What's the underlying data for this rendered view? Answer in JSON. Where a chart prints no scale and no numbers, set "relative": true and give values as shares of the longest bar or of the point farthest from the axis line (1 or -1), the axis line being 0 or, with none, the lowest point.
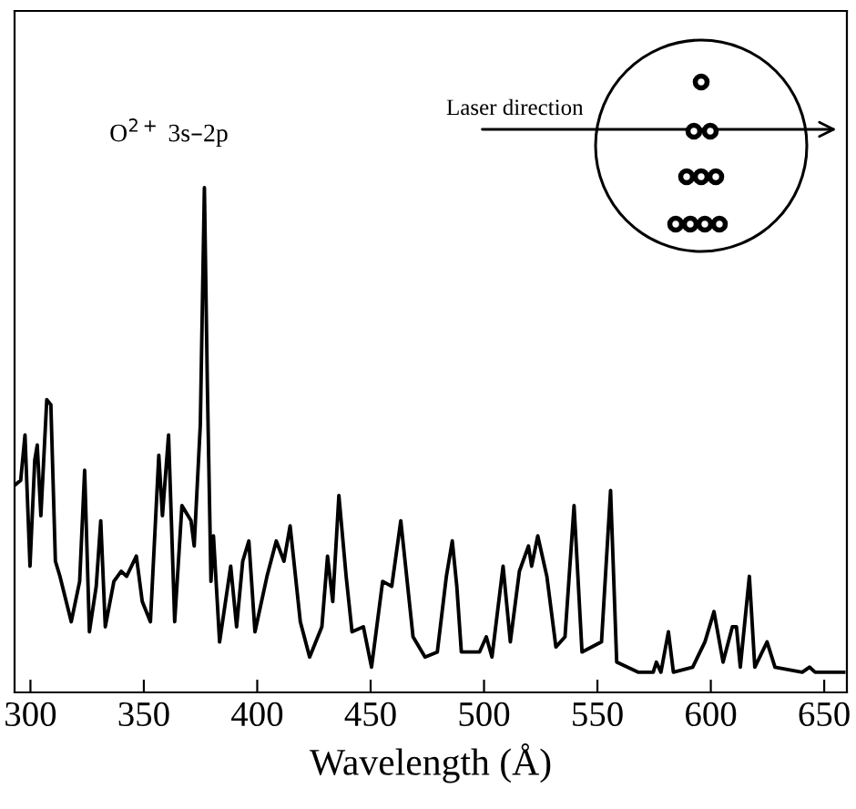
{
  "chart_data": {
    "type": "line",
    "relative": true,
    "xlabel": "Wavelength (Å)",
    "xlim": [
      293,
      660
    ],
    "xticks": [
      300,
      350,
      400,
      450,
      500,
      550,
      600,
      650
    ],
    "tick_labels": "x",
    "grid": false,
    "marker": "none",
    "line_style": "solid",
    "annotations": [
      {
        "text": "O$^{2+}$ 3s–2p",
        "x": 376.7,
        "y": 1.0
      },
      "Laser direction"
    ],
    "series": [
      {
        "color": "#000000",
        "x": [
          293,
          295.7,
          297.6,
          299.8,
          301.9,
          303,
          304.6,
          307.2,
          309,
          311,
          313,
          318,
          321.7,
          323.9,
          326,
          329,
          331,
          333,
          336.8,
          340,
          342.4,
          346.7,
          349.3,
          352.9,
          356.6,
          358.2,
          360.9,
          363.6,
          366.8,
          370.8,
          372.2,
          374.9,
          376.7,
          378,
          379.6,
          380.7,
          383.4,
          388.3,
          390.9,
          393.6,
          396.3,
          399,
          404.3,
          408.4,
          411.8,
          414.5,
          419,
          423.1,
          428.5,
          431,
          433.3,
          436,
          439.2,
          441.8,
          446.8,
          450.4,
          455.3,
          459.3,
          463.3,
          468.7,
          474,
          479.4,
          483.4,
          486,
          488,
          490,
          498,
          501,
          503.5,
          508.4,
          511.6,
          515.6,
          519.6,
          521,
          523.7,
          527.7,
          531.7,
          535.7,
          539.7,
          543.2,
          551.8,
          555.8,
          558.5,
          567.9,
          574.6,
          576,
          578,
          581.3,
          583.5,
          592,
          597.4,
          601.4,
          605.4,
          609.5,
          611.3,
          613,
          617,
          619.4,
          624.8,
          628.3,
          640.3,
          643.5,
          646,
          658.6
        ],
        "values": [
          0.41,
          0.42,
          0.51,
          0.25,
          0.46,
          0.49,
          0.35,
          0.58,
          0.57,
          0.26,
          0.23,
          0.14,
          0.22,
          0.44,
          0.12,
          0.21,
          0.34,
          0.13,
          0.22,
          0.24,
          0.23,
          0.27,
          0.18,
          0.14,
          0.47,
          0.35,
          0.51,
          0.14,
          0.37,
          0.34,
          0.29,
          0.53,
          1.0,
          0.61,
          0.22,
          0.31,
          0.1,
          0.25,
          0.13,
          0.26,
          0.3,
          0.12,
          0.23,
          0.3,
          0.26,
          0.33,
          0.14,
          0.07,
          0.13,
          0.27,
          0.18,
          0.39,
          0.23,
          0.12,
          0.13,
          0.05,
          0.22,
          0.21,
          0.34,
          0.11,
          0.07,
          0.08,
          0.23,
          0.3,
          0.21,
          0.08,
          0.08,
          0.11,
          0.07,
          0.25,
          0.1,
          0.24,
          0.29,
          0.25,
          0.31,
          0.23,
          0.09,
          0.11,
          0.37,
          0.08,
          0.1,
          0.4,
          0.06,
          0.04,
          0.04,
          0.06,
          0.04,
          0.12,
          0.04,
          0.05,
          0.1,
          0.16,
          0.06,
          0.13,
          0.13,
          0.05,
          0.23,
          0.05,
          0.1,
          0.05,
          0.04,
          0.05,
          0.04,
          0.04
        ]
      }
    ]
  }
}
